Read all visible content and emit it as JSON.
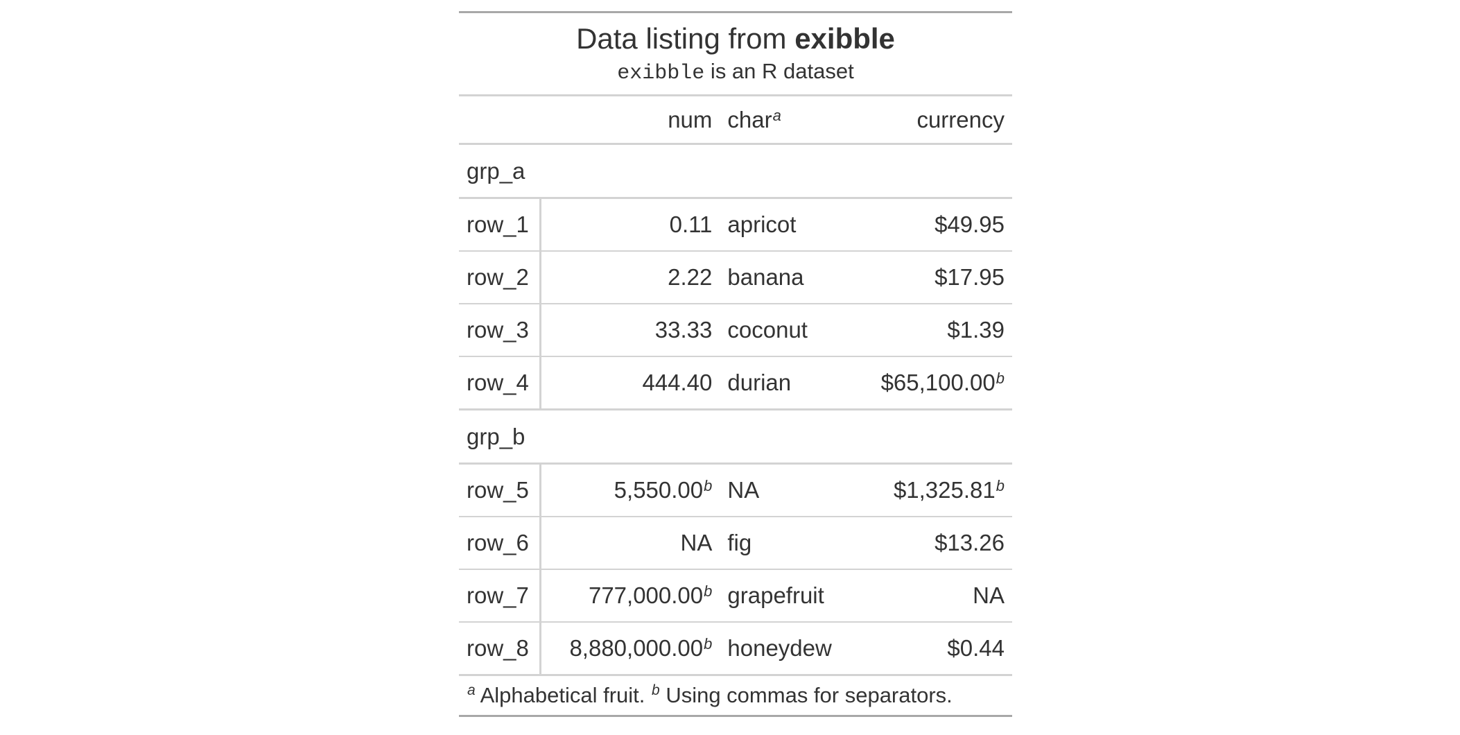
{
  "title": {
    "prefix": "Data listing from ",
    "bold": "exibble"
  },
  "subtitle": {
    "code": "exibble",
    "rest": " is an R dataset"
  },
  "columns": [
    {
      "label": "",
      "align": "left"
    },
    {
      "label": "num",
      "align": "right"
    },
    {
      "label": "char",
      "mark": "a",
      "align": "left"
    },
    {
      "label": "currency",
      "align": "right"
    }
  ],
  "groups": [
    {
      "label": "grp_a",
      "rows": [
        {
          "stub": "row_1",
          "num": "0.11",
          "char": "apricot",
          "currency": "$49.95"
        },
        {
          "stub": "row_2",
          "num": "2.22",
          "char": "banana",
          "currency": "$17.95"
        },
        {
          "stub": "row_3",
          "num": "33.33",
          "char": "coconut",
          "currency": "$1.39"
        },
        {
          "stub": "row_4",
          "num": "444.40",
          "char": "durian",
          "currency": "$65,100.00",
          "currency_mark": "b"
        }
      ]
    },
    {
      "label": "grp_b",
      "rows": [
        {
          "stub": "row_5",
          "num": "5,550.00",
          "num_mark": "b",
          "char": "NA",
          "currency": "$1,325.81",
          "currency_mark": "b"
        },
        {
          "stub": "row_6",
          "num": "NA",
          "char": "fig",
          "currency": "$13.26"
        },
        {
          "stub": "row_7",
          "num": "777,000.00",
          "num_mark": "b",
          "char": "grapefruit",
          "currency": "NA"
        },
        {
          "stub": "row_8",
          "num": "8,880,000.00",
          "num_mark": "b",
          "char": "honeydew",
          "currency": "$0.44"
        }
      ]
    }
  ],
  "footnotes": [
    {
      "mark": "a",
      "text": " Alphabetical fruit. "
    },
    {
      "mark": "b",
      "text": " Using commas for separators."
    }
  ],
  "colors": {
    "text": "#333333",
    "outer_border": "#a8a8a8",
    "inner_border": "#d3d3d3",
    "background": "#ffffff"
  }
}
